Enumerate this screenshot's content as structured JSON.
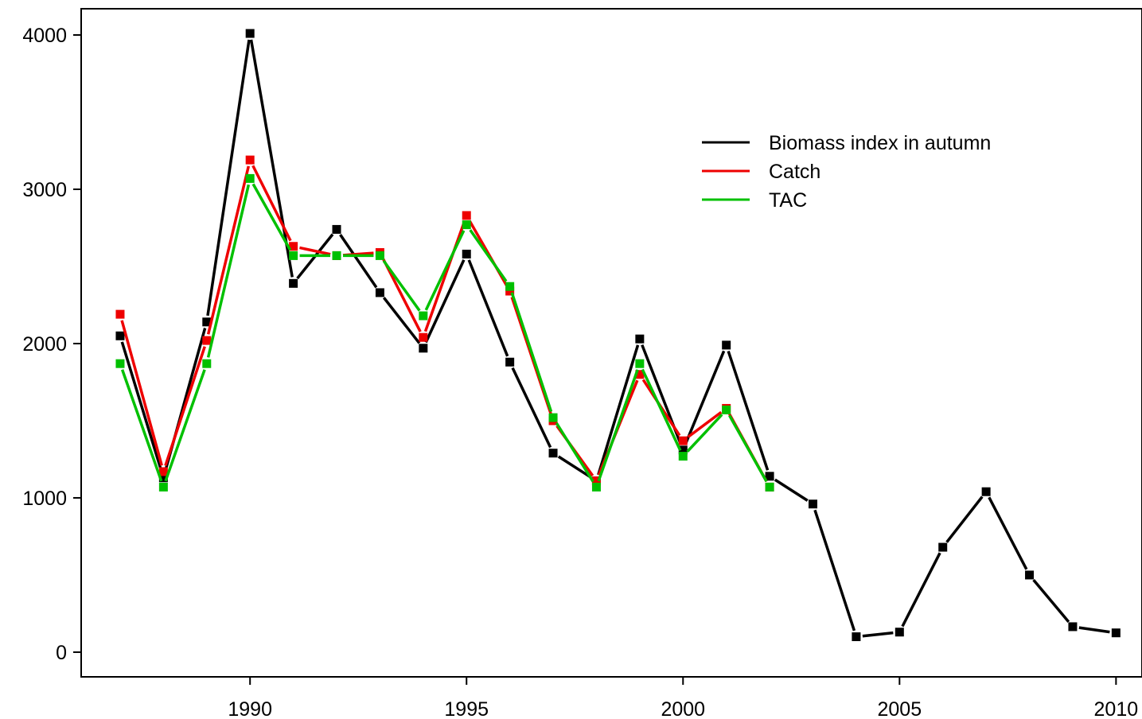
{
  "chart_data": {
    "type": "line",
    "title": "",
    "xlabel": "",
    "ylabel": "",
    "xlim": [
      1986.1,
      2010.6
    ],
    "ylim": [
      -160,
      4170
    ],
    "x_ticks": [
      1990,
      1995,
      2000,
      2005,
      2010
    ],
    "y_ticks": [
      0,
      1000,
      2000,
      3000,
      4000
    ],
    "x_tick_labels": [
      "1990",
      "1995",
      "2000",
      "2005",
      "2010"
    ],
    "y_tick_labels": [
      "0",
      "1000",
      "2000",
      "3000",
      "4000"
    ],
    "grid": false,
    "legend_position": "top-right",
    "series": [
      {
        "name": "Biomass index in autumn",
        "color": "#000000",
        "x": [
          1987,
          1988,
          1989,
          1990,
          1991,
          1992,
          1993,
          1994,
          1995,
          1996,
          1997,
          1998,
          1999,
          2000,
          2001,
          2002,
          2003,
          2004,
          2005,
          2006,
          2007,
          2008,
          2009,
          2010
        ],
        "values": [
          2050,
          1130,
          2140,
          4010,
          2390,
          2740,
          2330,
          1970,
          2580,
          1880,
          1290,
          1110,
          2030,
          1310,
          1990,
          1140,
          960,
          100,
          130,
          680,
          1040,
          500,
          165,
          125
        ]
      },
      {
        "name": "Catch",
        "color": "#ee0000",
        "x": [
          1987,
          1988,
          1989,
          1990,
          1991,
          1992,
          1993,
          1994,
          1995,
          1996,
          1997,
          1998,
          1999,
          2000,
          2001,
          2002
        ],
        "values": [
          2190,
          1170,
          2020,
          3190,
          2630,
          2570,
          2590,
          2040,
          2830,
          2340,
          1500,
          1110,
          1800,
          1370,
          1580,
          1070
        ]
      },
      {
        "name": "TAC",
        "color": "#00c000",
        "x": [
          1987,
          1988,
          1989,
          1990,
          1991,
          1992,
          1993,
          1994,
          1995,
          1996,
          1997,
          1998,
          1999,
          2000,
          2001,
          2002
        ],
        "values": [
          1870,
          1070,
          1870,
          3070,
          2570,
          2570,
          2570,
          2180,
          2770,
          2370,
          1520,
          1070,
          1870,
          1270,
          1570,
          1070
        ]
      }
    ]
  }
}
